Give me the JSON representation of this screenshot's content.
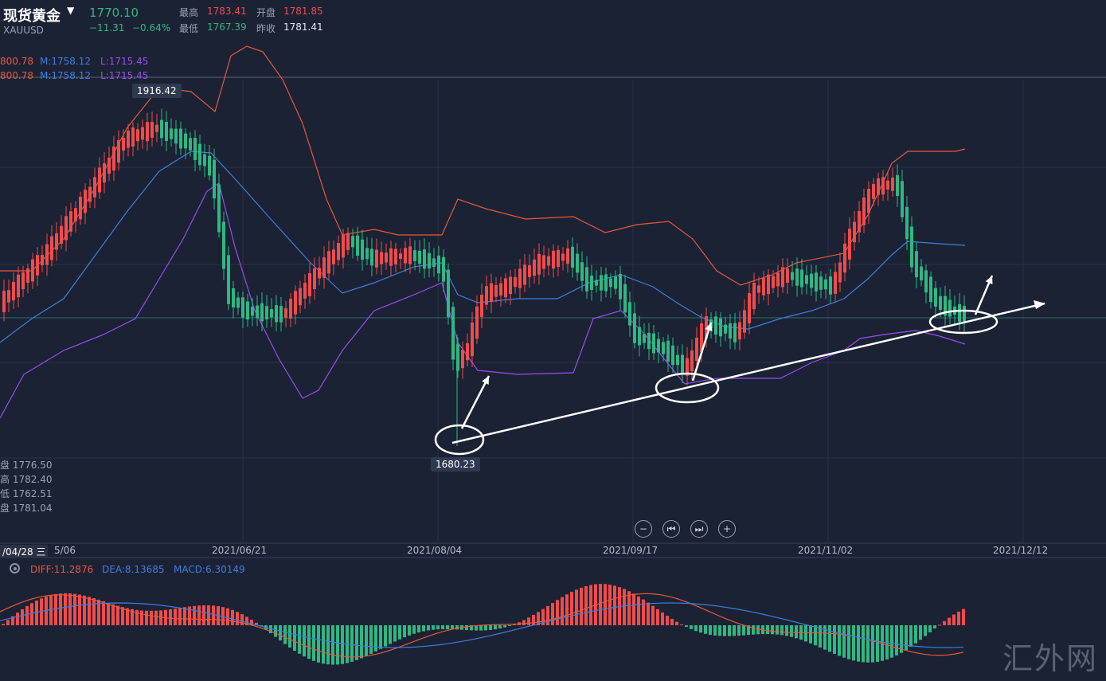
{
  "header": {
    "title": "现货黄金",
    "symbol": "XAUUSD",
    "price": "1770.10",
    "change": "−11.31",
    "change_pct": "−0.64%",
    "high_label": "最高",
    "high_value": "1783.41",
    "open_label": "开盘",
    "open_value": "1781.85",
    "low_label": "最低",
    "low_value": "1767.39",
    "prev_close_label": "昨收",
    "prev_close_value": "1781.41"
  },
  "bollinger": {
    "upper": "800.78",
    "mid": "M:1758.12",
    "lower": "L:1715.45"
  },
  "side_ohlc": [
    {
      "label": "盘",
      "value": "1776.50"
    },
    {
      "label": "高",
      "value": "1782.40"
    },
    {
      "label": "低",
      "value": "1762.51"
    },
    {
      "label": "盘",
      "value": "1781.04"
    }
  ],
  "tags": {
    "high": "1916.42",
    "low": "1680.23"
  },
  "dates": {
    "cursor": "/04/28 三",
    "cursor_suffix": "5/06",
    "d1": "2021/06/21",
    "d2": "2021/08/04",
    "d3": "2021/09/17",
    "d4": "2021/11/02",
    "d5": "2021/12/12"
  },
  "macd": {
    "diff": "DIFF:11.2876",
    "dea": "DEA:8.13685",
    "macd": "MACD:6.30149"
  },
  "controls": {
    "zoom_out": "−",
    "prev": "⏮",
    "next": "⏭",
    "zoom_in": "+"
  },
  "watermark": "汇外网",
  "colors": {
    "up": "#f24b4b",
    "down": "#2eb883",
    "upper_band": "#e8583a",
    "mid_band": "#3d7fe0",
    "lower_band": "#9a4df0",
    "background": "#1b2234"
  },
  "chart_data": {
    "type": "candlestick",
    "instrument": "XAUUSD",
    "annotations": [
      "1916.42",
      "1680.23"
    ]
  }
}
